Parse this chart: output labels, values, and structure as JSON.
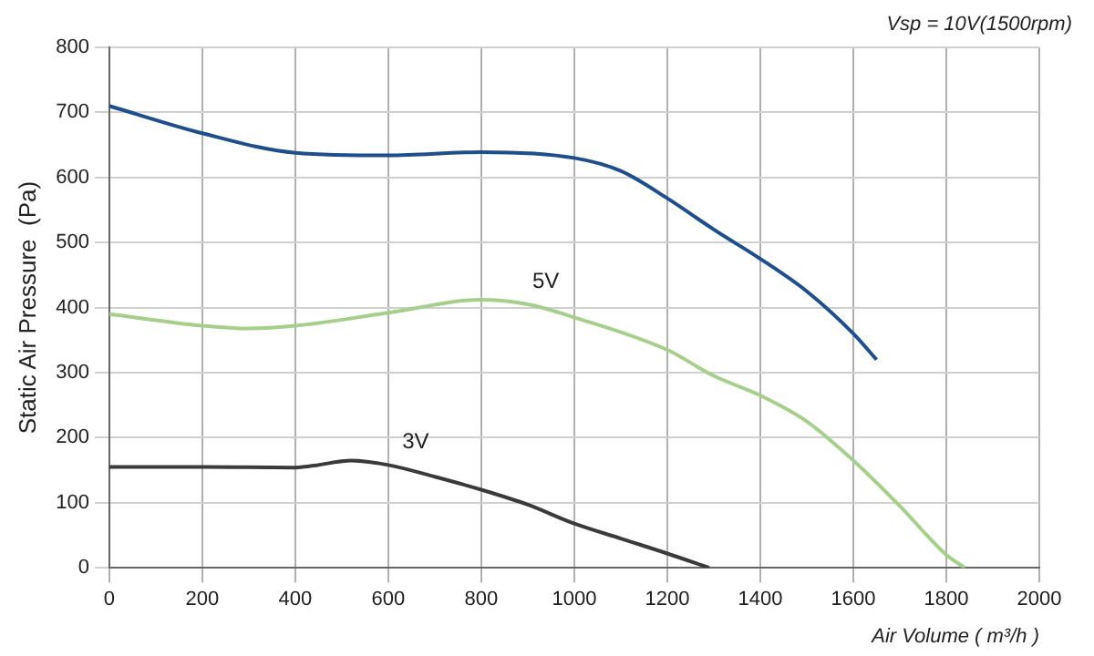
{
  "chart_data": {
    "type": "line",
    "xlabel": "Air Volume ( m³/h )",
    "ylabel": "Static Air Pressure  (Pa)",
    "annotations": [
      "Vsp = 10V(1500rpm)"
    ],
    "xlim": [
      0,
      2000
    ],
    "xticks": [
      0,
      200,
      400,
      600,
      800,
      1000,
      1200,
      1400,
      1600,
      1800,
      2000
    ],
    "ylim": [
      0,
      800
    ],
    "yticks": [
      0,
      100,
      200,
      300,
      400,
      500,
      600,
      700,
      800
    ],
    "grid": true,
    "marker": "none",
    "line_style": "solid",
    "series": [
      {
        "color": "#1f4e8c",
        "x": [
          0,
          200,
          400,
          600,
          800,
          1000,
          1100,
          1200,
          1300,
          1400,
          1500,
          1600,
          1650
        ],
        "values": [
          710,
          668,
          638,
          634,
          639,
          630,
          610,
          568,
          520,
          475,
          425,
          360,
          320
        ]
      },
      {
        "name": "5V",
        "color": "#a6cf8c",
        "x": [
          0,
          200,
          300,
          400,
          600,
          800,
          900,
          1000,
          1200,
          1300,
          1400,
          1500,
          1600,
          1700,
          1800,
          1840
        ],
        "values": [
          390,
          372,
          368,
          372,
          392,
          412,
          405,
          385,
          335,
          295,
          265,
          225,
          165,
          95,
          20,
          0
        ]
      },
      {
        "name": "3V",
        "color": "#3a3a3a",
        "x": [
          0,
          200,
          400,
          440,
          520,
          600,
          700,
          800,
          900,
          1000,
          1100,
          1200,
          1290
        ],
        "values": [
          155,
          155,
          154,
          157,
          165,
          158,
          140,
          120,
          97,
          68,
          45,
          22,
          0
        ]
      }
    ]
  }
}
